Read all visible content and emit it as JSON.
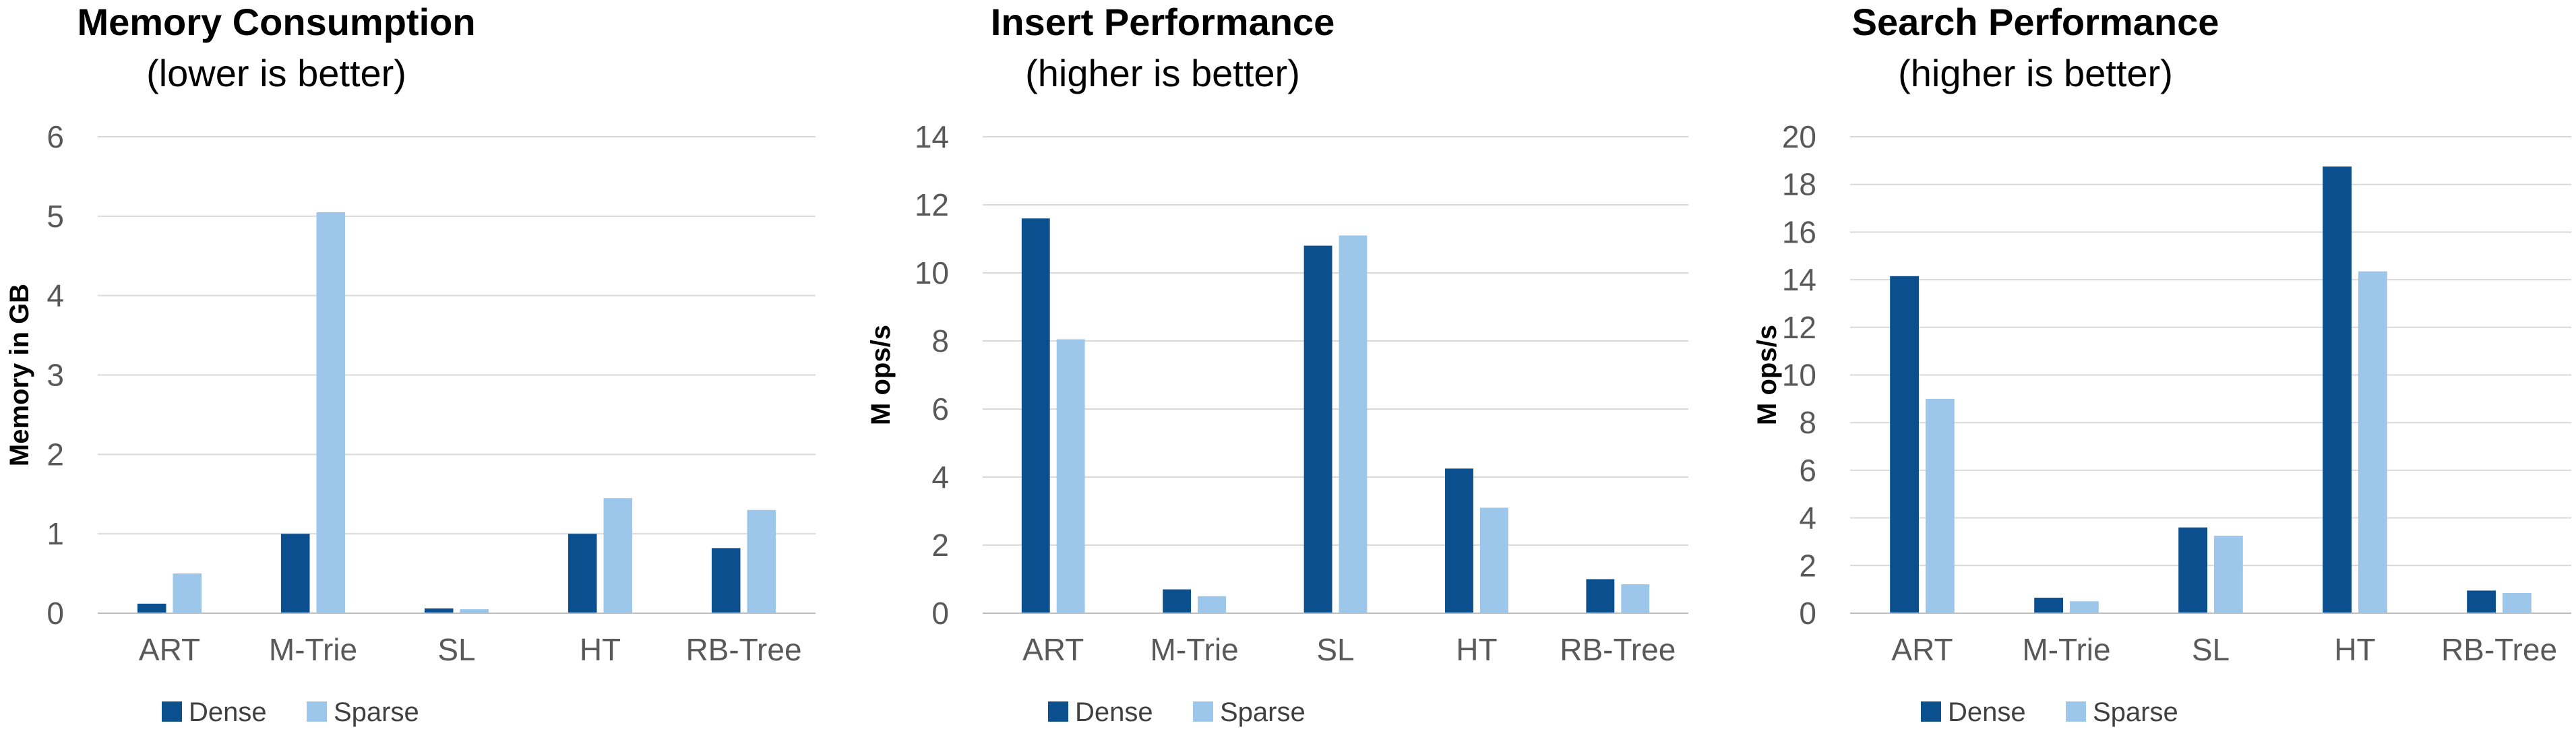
{
  "colors": {
    "dense": "#0b4f8f",
    "sparse": "#9dc7ea"
  },
  "chart_data": [
    {
      "type": "bar",
      "title": "Memory Consumption",
      "subtitle": "(lower is better)",
      "ylabel": "Memory in GB",
      "xlabel": "",
      "ylim": [
        0,
        6
      ],
      "yticks": [
        0,
        1,
        2,
        3,
        4,
        5,
        6
      ],
      "grid": true,
      "legend": "bottom",
      "categories": [
        "ART",
        "M-Trie",
        "SL",
        "HT",
        "RB-Tree"
      ],
      "series": [
        {
          "name": "Dense",
          "values": [
            0.12,
            1.0,
            0.06,
            1.0,
            0.82
          ]
        },
        {
          "name": "Sparse",
          "values": [
            0.5,
            5.05,
            0.05,
            1.45,
            1.3
          ]
        }
      ]
    },
    {
      "type": "bar",
      "title": "Insert Performance",
      "subtitle": "(higher is better)",
      "ylabel": "M ops/s",
      "xlabel": "",
      "ylim": [
        0,
        14
      ],
      "yticks": [
        0,
        2,
        4,
        6,
        8,
        10,
        12,
        14
      ],
      "grid": true,
      "legend": "bottom",
      "categories": [
        "ART",
        "M-Trie",
        "SL",
        "HT",
        "RB-Tree"
      ],
      "series": [
        {
          "name": "Dense",
          "values": [
            11.6,
            0.7,
            10.8,
            4.25,
            1.0
          ]
        },
        {
          "name": "Sparse",
          "values": [
            8.05,
            0.5,
            11.1,
            3.1,
            0.85
          ]
        }
      ]
    },
    {
      "type": "bar",
      "title": "Search Performance",
      "subtitle": "(higher is better)",
      "ylabel": "M ops/s",
      "xlabel": "",
      "ylim": [
        0,
        20
      ],
      "yticks": [
        0,
        2,
        4,
        6,
        8,
        10,
        12,
        14,
        16,
        18,
        20
      ],
      "grid": true,
      "legend": "bottom",
      "categories": [
        "ART",
        "M-Trie",
        "SL",
        "HT",
        "RB-Tree"
      ],
      "series": [
        {
          "name": "Dense",
          "values": [
            14.15,
            0.65,
            3.6,
            18.75,
            0.95
          ]
        },
        {
          "name": "Sparse",
          "values": [
            9.0,
            0.5,
            3.25,
            14.35,
            0.85
          ]
        }
      ]
    }
  ]
}
